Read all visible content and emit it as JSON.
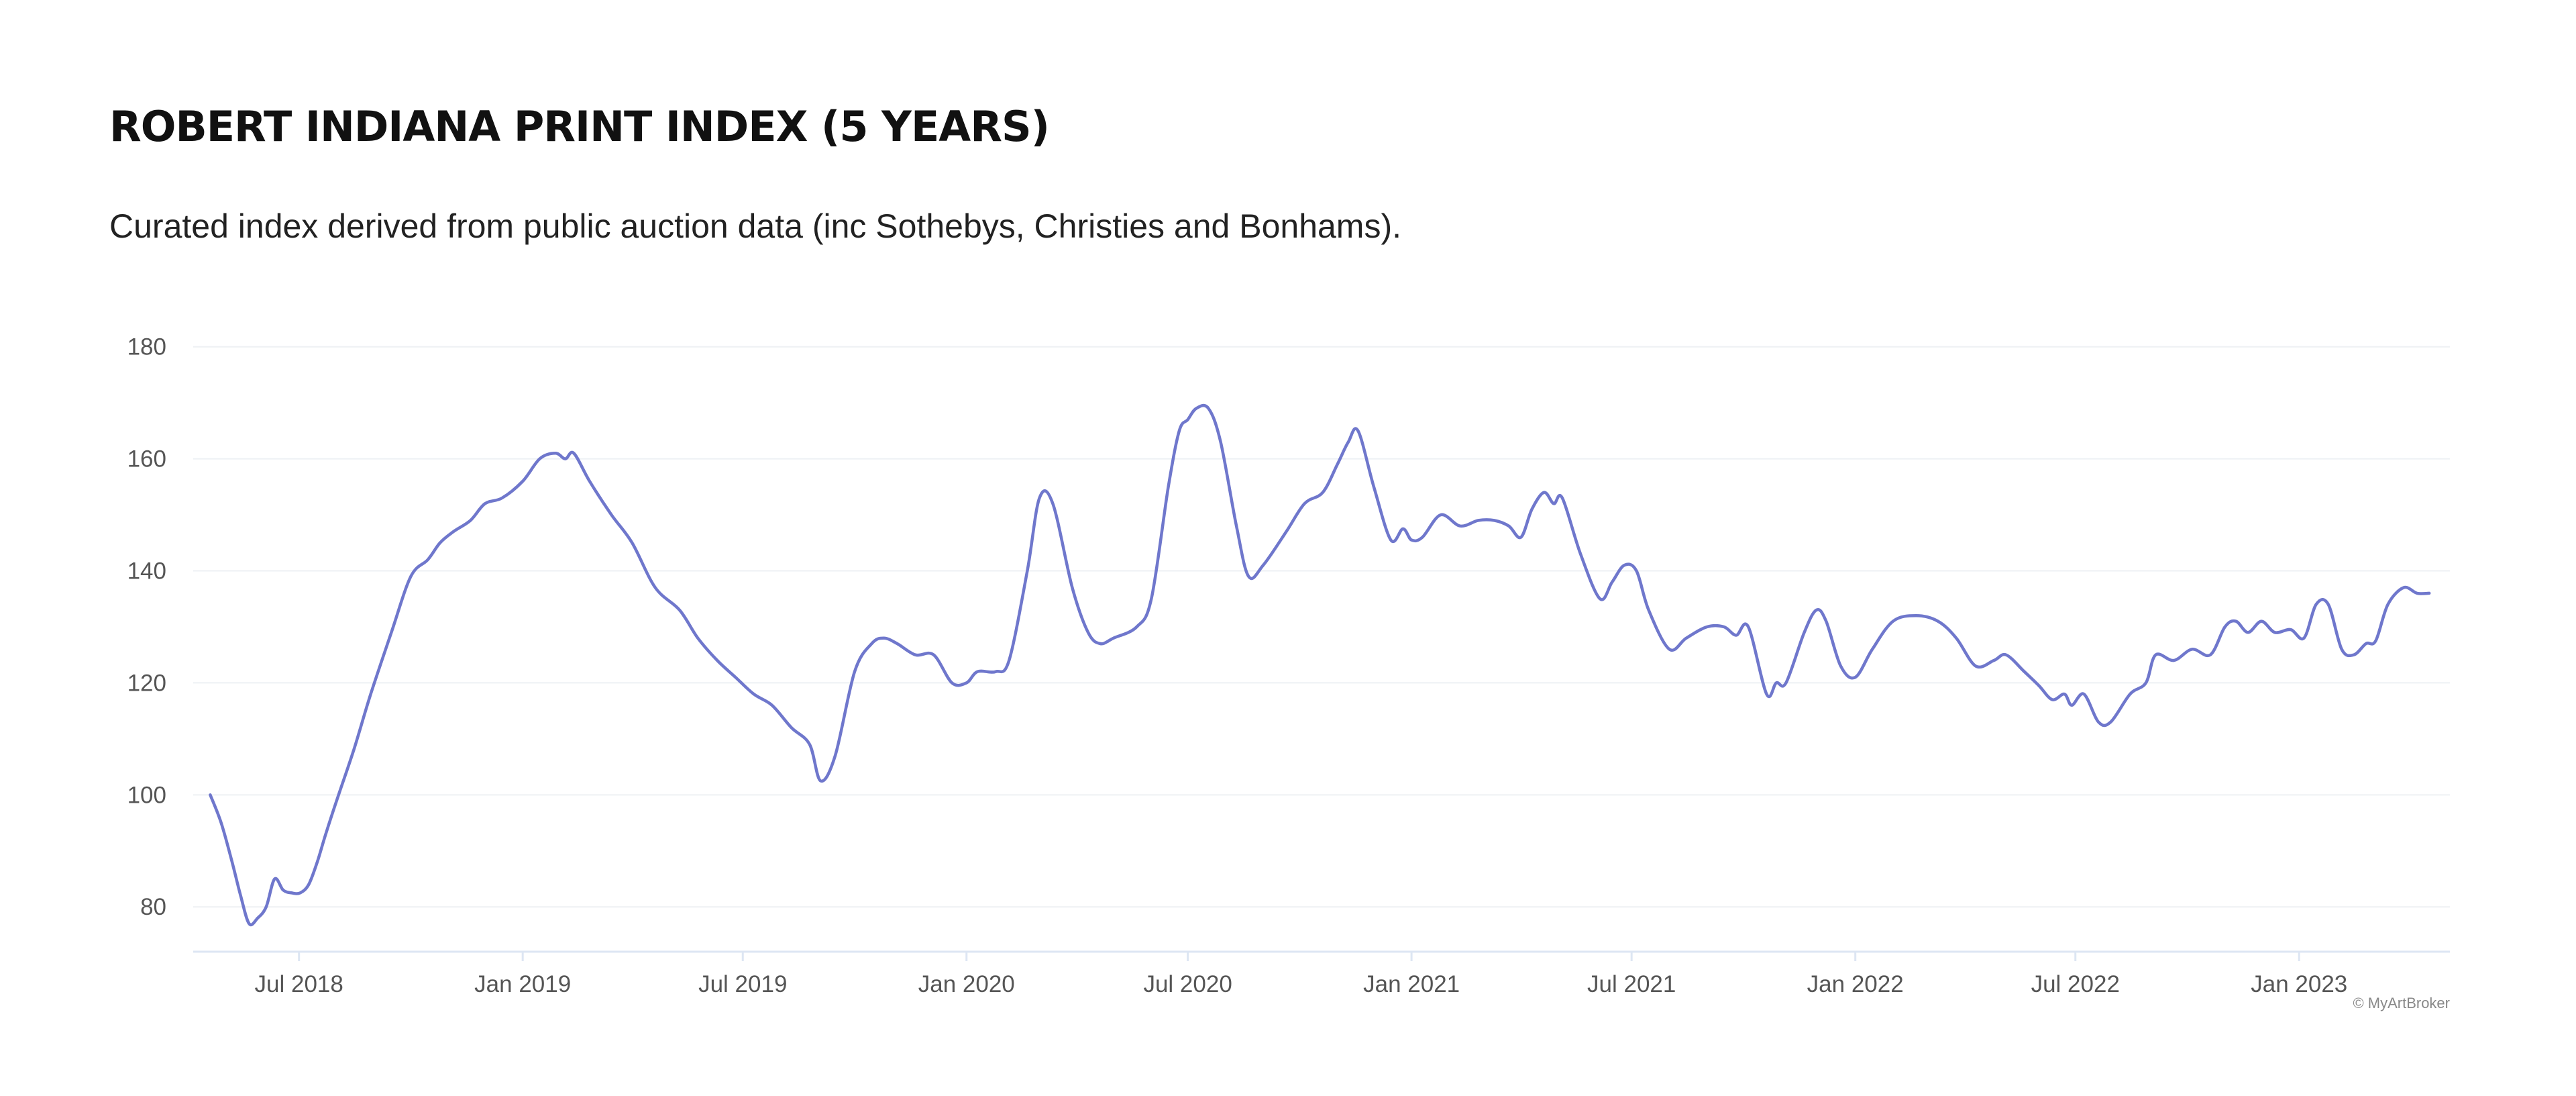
{
  "title": "ROBERT INDIANA PRINT INDEX (5 YEARS)",
  "subtitle": "Curated index derived from public auction data (inc Sothebys, Christies and Bonhams).",
  "watermark": "© MyArtBroker",
  "colors": {
    "line": "#6f77cc",
    "grid": "#eef0f4",
    "axis": "#dde6f3",
    "tick_text": "#555555",
    "title": "#111111"
  },
  "chart_data": {
    "type": "line",
    "title": "ROBERT INDIANA PRINT INDEX (5 YEARS)",
    "subtitle": "Curated index derived from public auction data (inc Sothebys, Christies and Bonhams).",
    "xlabel": "",
    "ylabel": "",
    "ylim": [
      72,
      182
    ],
    "xlim": [
      "2018-04-05",
      "2023-05-05"
    ],
    "y_ticks": [
      80,
      100,
      120,
      140,
      160,
      180
    ],
    "x_ticks": [
      {
        "date": "2018-07-01",
        "label": "Jul 2018"
      },
      {
        "date": "2019-01-01",
        "label": "Jan 2019"
      },
      {
        "date": "2019-07-01",
        "label": "Jul 2019"
      },
      {
        "date": "2020-01-01",
        "label": "Jan 2020"
      },
      {
        "date": "2020-07-01",
        "label": "Jul 2020"
      },
      {
        "date": "2021-01-01",
        "label": "Jan 2021"
      },
      {
        "date": "2021-07-01",
        "label": "Jul 2021"
      },
      {
        "date": "2022-01-01",
        "label": "Jan 2022"
      },
      {
        "date": "2022-07-01",
        "label": "Jul 2022"
      },
      {
        "date": "2023-01-01",
        "label": "Jan 2023"
      }
    ],
    "grid": true,
    "legend": "none",
    "series": [
      {
        "values": [
          [
            "2018-04-19",
            100
          ],
          [
            "2018-04-28",
            95
          ],
          [
            "2018-05-07",
            88
          ],
          [
            "2018-05-14",
            82
          ],
          [
            "2018-05-21",
            77
          ],
          [
            "2018-05-28",
            78
          ],
          [
            "2018-06-04",
            80
          ],
          [
            "2018-06-11",
            85
          ],
          [
            "2018-06-18",
            83
          ],
          [
            "2018-06-25",
            82.5
          ],
          [
            "2018-07-02",
            82.5
          ],
          [
            "2018-07-09",
            84
          ],
          [
            "2018-07-16",
            88
          ],
          [
            "2018-07-23",
            93
          ],
          [
            "2018-08-01",
            99
          ],
          [
            "2018-08-15",
            108
          ],
          [
            "2018-08-29",
            118
          ],
          [
            "2018-09-15",
            129
          ],
          [
            "2018-10-01",
            139
          ],
          [
            "2018-10-15",
            142
          ],
          [
            "2018-10-25",
            145
          ],
          [
            "2018-11-05",
            147
          ],
          [
            "2018-11-19",
            149
          ],
          [
            "2018-12-01",
            152
          ],
          [
            "2018-12-15",
            153
          ],
          [
            "2019-01-01",
            156
          ],
          [
            "2019-01-15",
            160
          ],
          [
            "2019-01-28",
            161
          ],
          [
            "2019-02-05",
            160
          ],
          [
            "2019-02-12",
            161
          ],
          [
            "2019-02-25",
            156
          ],
          [
            "2019-03-15",
            150
          ],
          [
            "2019-04-01",
            145
          ],
          [
            "2019-04-20",
            137
          ],
          [
            "2019-05-10",
            133
          ],
          [
            "2019-05-25",
            128
          ],
          [
            "2019-06-10",
            124
          ],
          [
            "2019-06-25",
            121
          ],
          [
            "2019-07-10",
            118
          ],
          [
            "2019-07-25",
            116
          ],
          [
            "2019-08-10",
            112
          ],
          [
            "2019-08-25",
            109
          ],
          [
            "2019-09-03",
            102.5
          ],
          [
            "2019-09-15",
            107
          ],
          [
            "2019-10-01",
            122
          ],
          [
            "2019-10-15",
            127
          ],
          [
            "2019-10-25",
            128
          ],
          [
            "2019-11-05",
            127
          ],
          [
            "2019-11-20",
            125
          ],
          [
            "2019-12-05",
            125
          ],
          [
            "2019-12-20",
            120
          ],
          [
            "2020-01-01",
            120
          ],
          [
            "2020-01-10",
            122
          ],
          [
            "2020-01-25",
            122
          ],
          [
            "2020-02-05",
            124
          ],
          [
            "2020-02-20",
            140
          ],
          [
            "2020-03-01",
            153
          ],
          [
            "2020-03-12",
            152
          ],
          [
            "2020-03-28",
            137
          ],
          [
            "2020-04-10",
            129
          ],
          [
            "2020-04-20",
            127
          ],
          [
            "2020-05-01",
            128
          ],
          [
            "2020-05-20",
            130
          ],
          [
            "2020-06-01",
            135
          ],
          [
            "2020-06-15",
            155
          ],
          [
            "2020-06-24",
            165
          ],
          [
            "2020-07-01",
            167
          ],
          [
            "2020-07-08",
            169
          ],
          [
            "2020-07-18",
            169
          ],
          [
            "2020-07-28",
            163
          ],
          [
            "2020-08-10",
            148
          ],
          [
            "2020-08-20",
            139
          ],
          [
            "2020-09-01",
            141
          ],
          [
            "2020-09-20",
            147
          ],
          [
            "2020-10-05",
            152
          ],
          [
            "2020-10-20",
            154
          ],
          [
            "2020-11-01",
            159
          ],
          [
            "2020-11-10",
            163
          ],
          [
            "2020-11-18",
            165
          ],
          [
            "2020-12-01",
            155
          ],
          [
            "2020-12-15",
            145.5
          ],
          [
            "2020-12-25",
            147.5
          ],
          [
            "2021-01-01",
            145.5
          ],
          [
            "2021-01-10",
            146
          ],
          [
            "2021-01-25",
            150
          ],
          [
            "2021-02-10",
            148
          ],
          [
            "2021-02-25",
            149
          ],
          [
            "2021-03-10",
            149
          ],
          [
            "2021-03-22",
            148
          ],
          [
            "2021-04-01",
            146
          ],
          [
            "2021-04-10",
            151
          ],
          [
            "2021-04-20",
            154
          ],
          [
            "2021-04-28",
            152
          ],
          [
            "2021-05-05",
            153
          ],
          [
            "2021-05-20",
            143
          ],
          [
            "2021-06-05",
            135
          ],
          [
            "2021-06-15",
            138
          ],
          [
            "2021-06-25",
            141
          ],
          [
            "2021-07-05",
            140
          ],
          [
            "2021-07-15",
            133
          ],
          [
            "2021-08-01",
            126
          ],
          [
            "2021-08-15",
            128
          ],
          [
            "2021-09-01",
            130
          ],
          [
            "2021-09-15",
            130
          ],
          [
            "2021-09-25",
            128.5
          ],
          [
            "2021-10-05",
            130
          ],
          [
            "2021-10-20",
            118
          ],
          [
            "2021-10-28",
            120
          ],
          [
            "2021-11-05",
            120
          ],
          [
            "2021-11-20",
            129
          ],
          [
            "2021-11-30",
            133
          ],
          [
            "2021-12-08",
            131
          ],
          [
            "2021-12-20",
            123
          ],
          [
            "2022-01-01",
            121
          ],
          [
            "2022-01-15",
            126
          ],
          [
            "2022-02-01",
            131
          ],
          [
            "2022-02-20",
            132
          ],
          [
            "2022-03-10",
            131
          ],
          [
            "2022-03-25",
            128
          ],
          [
            "2022-04-10",
            123
          ],
          [
            "2022-04-25",
            124
          ],
          [
            "2022-05-05",
            125
          ],
          [
            "2022-05-20",
            122
          ],
          [
            "2022-06-01",
            119.5
          ],
          [
            "2022-06-12",
            117
          ],
          [
            "2022-06-22",
            118
          ],
          [
            "2022-06-28",
            116
          ],
          [
            "2022-07-08",
            118
          ],
          [
            "2022-07-20",
            113
          ],
          [
            "2022-07-30",
            113
          ],
          [
            "2022-08-15",
            118
          ],
          [
            "2022-08-28",
            120
          ],
          [
            "2022-09-05",
            125
          ],
          [
            "2022-09-20",
            124
          ],
          [
            "2022-10-05",
            126
          ],
          [
            "2022-10-20",
            125
          ],
          [
            "2022-11-01",
            130
          ],
          [
            "2022-11-10",
            131
          ],
          [
            "2022-11-20",
            129
          ],
          [
            "2022-12-01",
            131
          ],
          [
            "2022-12-12",
            129
          ],
          [
            "2022-12-25",
            129.5
          ],
          [
            "2023-01-05",
            128
          ],
          [
            "2023-01-15",
            134
          ],
          [
            "2023-01-25",
            134
          ],
          [
            "2023-02-05",
            126
          ],
          [
            "2023-02-15",
            125
          ],
          [
            "2023-02-25",
            127
          ],
          [
            "2023-03-05",
            127.5
          ],
          [
            "2023-03-15",
            134
          ],
          [
            "2023-03-28",
            137
          ],
          [
            "2023-04-08",
            136
          ],
          [
            "2023-04-18",
            136
          ]
        ]
      }
    ]
  }
}
